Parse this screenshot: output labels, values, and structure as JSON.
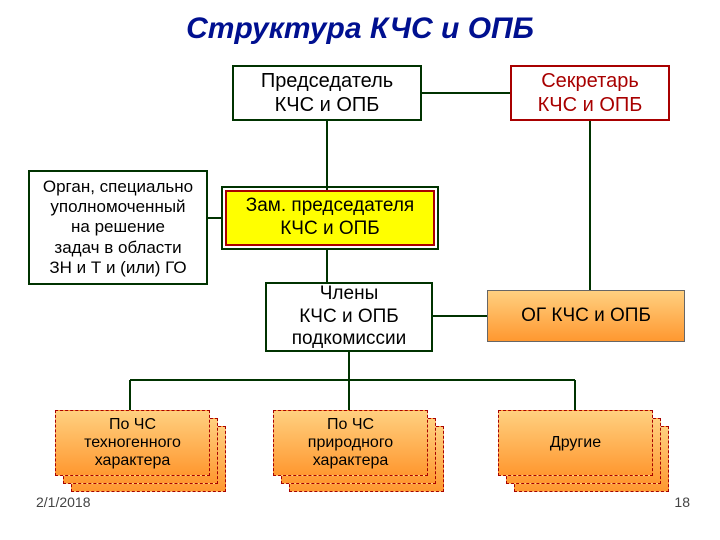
{
  "title": "Структура   КЧС и ОПБ",
  "nodes": {
    "chair": "Председатель\nКЧС и ОПБ",
    "secretary": "Секретарь\nКЧС и ОПБ",
    "organ": "Орган, специально\nуполномоченный\nна решение\nзадач в области\nЗН и Т и (или) ГО",
    "deputy": "Зам. председателя\nКЧС и ОПБ",
    "members": "Члены\nКЧС и ОПБ\nподкомиссии",
    "og": "ОГ КЧС и ОПБ",
    "techno": "По ЧС\nтехногенного\nхарактера",
    "natural": "По ЧС\nприродного\nхарактера",
    "other": "Другие"
  },
  "footer": {
    "date": "2/1/2018",
    "page": "18"
  },
  "style": {
    "title_color": "#001090",
    "line_color": "#003300",
    "red": "#a80000",
    "yellow": "#ffff00",
    "grad_top": "#ffd080",
    "grad_bottom": "#ff9830"
  }
}
